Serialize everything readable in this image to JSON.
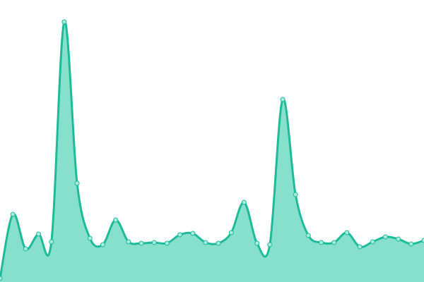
{
  "chart_data": {
    "type": "area",
    "categories": [
      null,
      null,
      null,
      null,
      null,
      null,
      null,
      null,
      null,
      null,
      null,
      null,
      null,
      null,
      null,
      null,
      null,
      null,
      null,
      null,
      null,
      null,
      null,
      null,
      null,
      null,
      null,
      null,
      null,
      null,
      null,
      null,
      null,
      null
    ],
    "series": [
      {
        "color": "#1dbb99",
        "fill": "#86e0cc",
        "values": [
          5,
          96,
          47,
          68,
          57,
          369,
          140,
          62,
          53,
          88,
          57,
          55,
          56,
          55,
          67,
          69,
          56,
          55,
          70,
          113,
          55,
          53,
          259,
          124,
          66,
          56,
          56,
          70,
          50,
          57,
          64,
          61,
          54,
          59
        ]
      }
    ],
    "ylim": [
      0,
      400
    ]
  }
}
